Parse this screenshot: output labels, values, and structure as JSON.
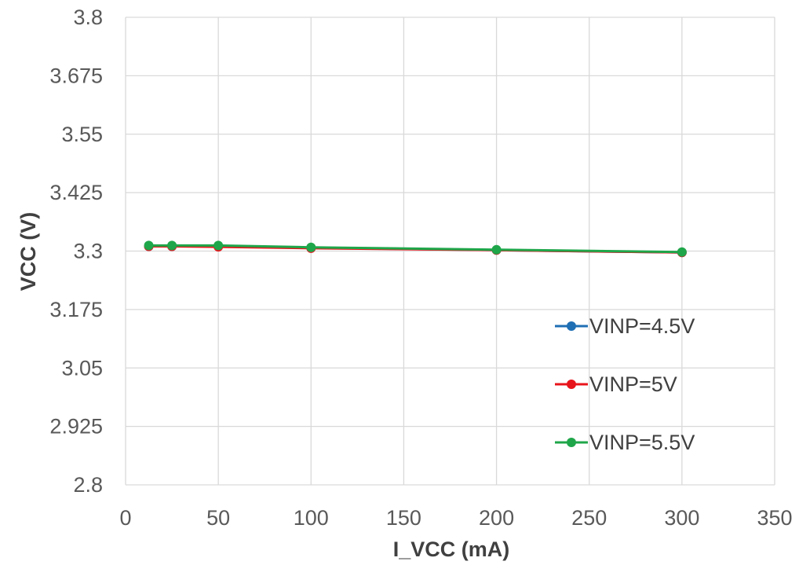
{
  "chart_data": {
    "type": "line",
    "title": "",
    "xlabel": "I_VCC (mA)",
    "ylabel": "VCC (V)",
    "xlim": [
      0,
      350
    ],
    "ylim": [
      2.8,
      3.8
    ],
    "xticks": [
      0,
      50,
      100,
      150,
      200,
      250,
      300,
      350
    ],
    "yticks": [
      2.8,
      2.925,
      3.05,
      3.175,
      3.3,
      3.425,
      3.55,
      3.675,
      3.8
    ],
    "xtick_labels": [
      "0",
      "50",
      "100",
      "150",
      "200",
      "250",
      "300",
      "350"
    ],
    "ytick_labels": [
      "2.8",
      "2.925",
      "3.05",
      "3.175",
      "3.3",
      "3.425",
      "3.55",
      "3.675",
      "3.8"
    ],
    "grid": true,
    "legend_position": "right",
    "series": [
      {
        "name": "VINP=4.5V",
        "color": "#1F6FB4",
        "x": [
          12.5,
          25,
          50,
          100,
          200,
          300
        ],
        "y": [
          3.31,
          3.31,
          3.31,
          3.307,
          3.302,
          3.297
        ]
      },
      {
        "name": "VINP=5V",
        "color": "#E8141B",
        "x": [
          12.5,
          25,
          50,
          100,
          200,
          300
        ],
        "y": [
          3.31,
          3.31,
          3.309,
          3.306,
          3.302,
          3.297
        ]
      },
      {
        "name": "VINP=5.5V",
        "color": "#1FA64A",
        "x": [
          12.5,
          25,
          50,
          100,
          200,
          300
        ],
        "y": [
          3.312,
          3.312,
          3.312,
          3.308,
          3.303,
          3.298
        ]
      }
    ]
  }
}
